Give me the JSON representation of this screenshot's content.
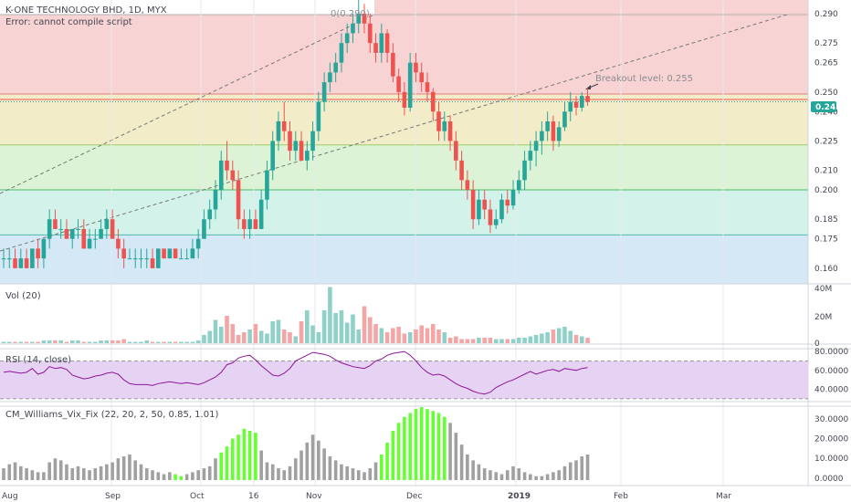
{
  "header": {
    "symbol_title": "K-ONE TECHNOLOGY BHD, 1D, MYX",
    "error_text": "Error: cannot compile script"
  },
  "annotations": {
    "fib_top_label": "0(0.290)",
    "breakout_label": "Breakout level: 0.255"
  },
  "last_price_label": "0.245",
  "colors": {
    "up": "#26a69a",
    "down": "#ef5350",
    "vol_up": "#8fd1c8",
    "vol_down": "#f4a6a6",
    "vix_green": "#66ff33",
    "vix_gray": "#a0a0a0",
    "rsi_line": "#8e1599",
    "rsi_band": "#e6d3f3",
    "breakout_line": "#ef5350",
    "price_label_bg": "#26a69a"
  },
  "x_axis_labels": [
    "Aug",
    "Sep",
    "Oct",
    "16",
    "Nov",
    "Dec",
    "2019",
    "Feb",
    "Mar"
  ],
  "chart_data": [
    {
      "type": "candlestick",
      "title": "K-ONE TECHNOLOGY BHD, 1D, MYX",
      "y_ticks": [
        "0.290",
        "0.275",
        "0.265",
        "0.250",
        "0.240",
        "0.225",
        "0.210",
        "0.200",
        "0.185",
        "0.175",
        "0.160"
      ],
      "ylim": [
        0.152,
        0.297
      ],
      "breakout_level": 0.255,
      "last_price": 0.245,
      "fib_levels": [
        0.29,
        0.249,
        0.223,
        0.2,
        0.177
      ],
      "candles": [
        [
          0.165,
          0.17,
          0.16,
          0.165
        ],
        [
          0.165,
          0.17,
          0.16,
          0.165
        ],
        [
          0.165,
          0.17,
          0.16,
          0.16
        ],
        [
          0.16,
          0.17,
          0.16,
          0.165
        ],
        [
          0.165,
          0.17,
          0.16,
          0.16
        ],
        [
          0.16,
          0.17,
          0.16,
          0.17
        ],
        [
          0.17,
          0.175,
          0.16,
          0.165
        ],
        [
          0.165,
          0.175,
          0.16,
          0.175
        ],
        [
          0.175,
          0.19,
          0.17,
          0.185
        ],
        [
          0.185,
          0.19,
          0.18,
          0.18
        ],
        [
          0.18,
          0.185,
          0.175,
          0.18
        ],
        [
          0.18,
          0.185,
          0.175,
          0.175
        ],
        [
          0.175,
          0.18,
          0.17,
          0.18
        ],
        [
          0.18,
          0.185,
          0.175,
          0.18
        ],
        [
          0.18,
          0.185,
          0.17,
          0.17
        ],
        [
          0.17,
          0.18,
          0.17,
          0.175
        ],
        [
          0.175,
          0.18,
          0.17,
          0.175
        ],
        [
          0.175,
          0.185,
          0.175,
          0.18
        ],
        [
          0.18,
          0.19,
          0.175,
          0.185
        ],
        [
          0.185,
          0.19,
          0.175,
          0.175
        ],
        [
          0.175,
          0.18,
          0.165,
          0.17
        ],
        [
          0.17,
          0.175,
          0.16,
          0.165
        ],
        [
          0.165,
          0.17,
          0.165,
          0.165
        ],
        [
          0.165,
          0.17,
          0.16,
          0.165
        ],
        [
          0.165,
          0.17,
          0.16,
          0.165
        ],
        [
          0.165,
          0.17,
          0.16,
          0.165
        ],
        [
          0.165,
          0.17,
          0.16,
          0.16
        ],
        [
          0.16,
          0.17,
          0.16,
          0.17
        ],
        [
          0.17,
          0.17,
          0.165,
          0.165
        ],
        [
          0.165,
          0.17,
          0.165,
          0.17
        ],
        [
          0.17,
          0.17,
          0.165,
          0.165
        ],
        [
          0.165,
          0.17,
          0.165,
          0.165
        ],
        [
          0.165,
          0.17,
          0.165,
          0.165
        ],
        [
          0.165,
          0.175,
          0.165,
          0.17
        ],
        [
          0.17,
          0.18,
          0.165,
          0.175
        ],
        [
          0.175,
          0.19,
          0.175,
          0.185
        ],
        [
          0.185,
          0.195,
          0.18,
          0.19
        ],
        [
          0.19,
          0.205,
          0.185,
          0.2
        ],
        [
          0.2,
          0.22,
          0.195,
          0.215
        ],
        [
          0.215,
          0.225,
          0.205,
          0.21
        ],
        [
          0.21,
          0.215,
          0.2,
          0.205
        ],
        [
          0.205,
          0.21,
          0.18,
          0.185
        ],
        [
          0.185,
          0.19,
          0.175,
          0.18
        ],
        [
          0.18,
          0.19,
          0.175,
          0.185
        ],
        [
          0.185,
          0.19,
          0.18,
          0.18
        ],
        [
          0.18,
          0.2,
          0.18,
          0.195
        ],
        [
          0.195,
          0.215,
          0.19,
          0.21
        ],
        [
          0.21,
          0.23,
          0.205,
          0.225
        ],
        [
          0.225,
          0.24,
          0.22,
          0.235
        ],
        [
          0.235,
          0.245,
          0.225,
          0.23
        ],
        [
          0.23,
          0.235,
          0.215,
          0.22
        ],
        [
          0.22,
          0.23,
          0.215,
          0.225
        ],
        [
          0.225,
          0.23,
          0.215,
          0.215
        ],
        [
          0.215,
          0.225,
          0.21,
          0.22
        ],
        [
          0.22,
          0.235,
          0.215,
          0.23
        ],
        [
          0.23,
          0.25,
          0.225,
          0.245
        ],
        [
          0.245,
          0.26,
          0.24,
          0.255
        ],
        [
          0.255,
          0.265,
          0.25,
          0.26
        ],
        [
          0.26,
          0.27,
          0.255,
          0.265
        ],
        [
          0.265,
          0.28,
          0.26,
          0.275
        ],
        [
          0.275,
          0.285,
          0.27,
          0.28
        ],
        [
          0.28,
          0.29,
          0.275,
          0.285
        ],
        [
          0.285,
          0.297,
          0.28,
          0.29
        ],
        [
          0.29,
          0.295,
          0.28,
          0.285
        ],
        [
          0.285,
          0.29,
          0.27,
          0.275
        ],
        [
          0.275,
          0.28,
          0.265,
          0.27
        ],
        [
          0.27,
          0.285,
          0.265,
          0.28
        ],
        [
          0.28,
          0.282,
          0.265,
          0.27
        ],
        [
          0.27,
          0.275,
          0.255,
          0.258
        ],
        [
          0.258,
          0.262,
          0.245,
          0.25
        ],
        [
          0.25,
          0.255,
          0.238,
          0.242
        ],
        [
          0.242,
          0.27,
          0.24,
          0.265
        ],
        [
          0.265,
          0.27,
          0.255,
          0.26
        ],
        [
          0.26,
          0.265,
          0.25,
          0.255
        ],
        [
          0.255,
          0.26,
          0.245,
          0.25
        ],
        [
          0.25,
          0.252,
          0.235,
          0.24
        ],
        [
          0.24,
          0.245,
          0.225,
          0.23
        ],
        [
          0.23,
          0.24,
          0.225,
          0.235
        ],
        [
          0.235,
          0.238,
          0.22,
          0.225
        ],
        [
          0.225,
          0.23,
          0.21,
          0.215
        ],
        [
          0.215,
          0.22,
          0.2,
          0.205
        ],
        [
          0.205,
          0.21,
          0.195,
          0.2
        ],
        [
          0.2,
          0.205,
          0.18,
          0.185
        ],
        [
          0.185,
          0.2,
          0.182,
          0.195
        ],
        [
          0.195,
          0.2,
          0.185,
          0.19
        ],
        [
          0.19,
          0.195,
          0.178,
          0.182
        ],
        [
          0.182,
          0.19,
          0.18,
          0.185
        ],
        [
          0.185,
          0.198,
          0.183,
          0.195
        ],
        [
          0.195,
          0.2,
          0.188,
          0.192
        ],
        [
          0.192,
          0.205,
          0.19,
          0.2
        ],
        [
          0.2,
          0.21,
          0.198,
          0.205
        ],
        [
          0.205,
          0.22,
          0.2,
          0.215
        ],
        [
          0.215,
          0.225,
          0.21,
          0.22
        ],
        [
          0.22,
          0.23,
          0.212,
          0.225
        ],
        [
          0.225,
          0.235,
          0.218,
          0.23
        ],
        [
          0.23,
          0.24,
          0.225,
          0.235
        ],
        [
          0.235,
          0.238,
          0.22,
          0.225
        ],
        [
          0.225,
          0.235,
          0.222,
          0.232
        ],
        [
          0.232,
          0.245,
          0.23,
          0.24
        ],
        [
          0.24,
          0.25,
          0.235,
          0.245
        ],
        [
          0.245,
          0.248,
          0.238,
          0.242
        ],
        [
          0.242,
          0.25,
          0.24,
          0.248
        ],
        [
          0.248,
          0.252,
          0.243,
          0.245
        ]
      ]
    },
    {
      "type": "bar",
      "title": "Vol (20)",
      "y_ticks": [
        "40M",
        "20M",
        "0"
      ],
      "ylim": [
        0,
        40
      ],
      "unit": "M",
      "values": [
        1,
        1,
        1,
        1,
        1,
        1,
        1,
        2,
        2,
        2,
        2,
        1,
        2,
        2,
        1,
        1,
        1,
        2,
        2,
        2,
        2,
        3,
        1,
        1,
        1,
        2,
        1,
        1,
        1,
        1,
        1,
        1,
        1,
        1,
        2,
        6,
        9,
        17,
        12,
        20,
        14,
        6,
        8,
        10,
        14,
        9,
        7,
        16,
        17,
        10,
        8,
        5,
        16,
        24,
        13,
        8,
        24,
        41,
        22,
        24,
        15,
        21,
        10,
        27,
        19,
        14,
        11,
        8,
        11,
        12,
        7,
        8,
        10,
        13,
        11,
        14,
        10,
        8,
        4,
        5,
        3,
        3,
        3,
        4,
        4,
        4,
        3,
        3,
        3,
        3,
        4,
        4,
        5,
        6,
        7,
        8,
        10,
        11,
        12,
        9,
        6,
        5,
        4
      ]
    },
    {
      "type": "line",
      "title": "RSI (14, close)",
      "y_ticks": [
        "80.0000",
        "60.0000",
        "40.0000"
      ],
      "ylim": [
        28,
        82
      ],
      "band": [
        30,
        70
      ],
      "values": [
        58,
        59,
        58,
        57,
        58,
        62,
        56,
        58,
        64,
        62,
        63,
        61,
        55,
        53,
        51,
        52,
        54,
        55,
        57,
        58,
        56,
        50,
        46,
        45,
        45,
        45,
        44,
        46,
        47,
        48,
        47,
        46,
        47,
        46,
        45,
        47,
        50,
        53,
        58,
        66,
        68,
        73,
        75,
        76,
        71,
        65,
        60,
        55,
        54,
        57,
        62,
        70,
        73,
        76,
        79,
        78,
        77,
        75,
        71,
        68,
        66,
        64,
        63,
        62,
        65,
        70,
        72,
        76,
        78,
        79,
        80,
        76,
        70,
        63,
        58,
        55,
        56,
        54,
        50,
        46,
        43,
        41,
        38,
        36,
        35,
        37,
        42,
        45,
        48,
        50,
        53,
        56,
        59,
        56,
        58,
        60,
        61,
        59,
        62,
        61,
        60,
        62,
        63
      ]
    },
    {
      "type": "bar",
      "title": "CM_Williams_Vix_Fix (22, 20, 2, 50, 0.85, 1.01)",
      "y_ticks": [
        "30.0000",
        "20.0000",
        "10.0000",
        "0.0000"
      ],
      "ylim": [
        -1,
        36
      ],
      "values": [
        5,
        7,
        8,
        6,
        5,
        4,
        3,
        3,
        8,
        10,
        9,
        7,
        5,
        6,
        5,
        4,
        5,
        6,
        7,
        8,
        10,
        11,
        12,
        9,
        7,
        5,
        4,
        3,
        2,
        3,
        2,
        1,
        2,
        3,
        4,
        5,
        6,
        10,
        13,
        16,
        20,
        22,
        25,
        24,
        23,
        14,
        8,
        7,
        5,
        4,
        6,
        10,
        14,
        18,
        22,
        19,
        15,
        11,
        9,
        7,
        6,
        5,
        4,
        3,
        5,
        8,
        12,
        18,
        24,
        28,
        31,
        33,
        35,
        36,
        35,
        34,
        33,
        31,
        28,
        23,
        17,
        12,
        9,
        7,
        5,
        4,
        3,
        2,
        4,
        6,
        5,
        3,
        2,
        1,
        1,
        2,
        3,
        4,
        6,
        8,
        9,
        11,
        12
      ]
    }
  ]
}
